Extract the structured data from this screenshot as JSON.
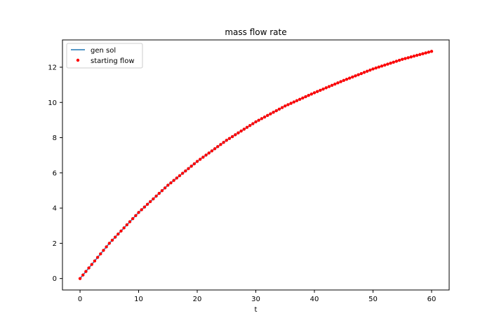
{
  "chart_data": {
    "type": "line",
    "title": "mass flow rate",
    "xlabel": "t",
    "ylabel": "",
    "xlim": [
      -3,
      63
    ],
    "ylim": [
      -0.65,
      13.55
    ],
    "xticks": [
      0,
      10,
      20,
      30,
      40,
      50,
      60
    ],
    "yticks": [
      0,
      2,
      4,
      6,
      8,
      10,
      12
    ],
    "grid": false,
    "legend_position": "top-left",
    "t_start": 0,
    "t_end": 60,
    "sample_count": 121,
    "series": [
      {
        "name": "gen sol",
        "style": "line",
        "color": "#1f77b4",
        "x": [
          0,
          5,
          10,
          15,
          20,
          25,
          30,
          35,
          40,
          45,
          50,
          55,
          60
        ],
        "y": [
          0,
          2.0,
          3.75,
          5.3,
          6.65,
          7.85,
          8.9,
          9.8,
          10.55,
          11.25,
          11.9,
          12.45,
          12.9
        ]
      },
      {
        "name": "starting flow",
        "style": "markers",
        "color": "#ff0000",
        "x": [
          0,
          5,
          10,
          15,
          20,
          25,
          30,
          35,
          40,
          45,
          50,
          55,
          60
        ],
        "y": [
          0,
          2.0,
          3.75,
          5.3,
          6.65,
          7.85,
          8.9,
          9.8,
          10.55,
          11.25,
          11.9,
          12.45,
          12.9
        ]
      }
    ]
  }
}
